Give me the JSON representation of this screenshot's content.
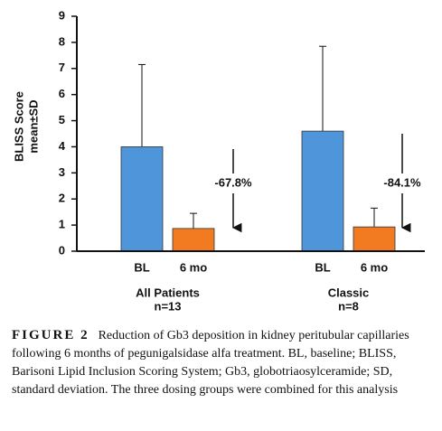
{
  "chart_data": {
    "type": "bar",
    "ylabel": [
      "BLISS Score",
      "mean±SD"
    ],
    "groups": [
      "All Patients",
      "Classic"
    ],
    "group_n": [
      "n=13",
      "n=8"
    ],
    "series": [
      {
        "name": "BL",
        "color": "#4f95d9",
        "values": [
          4.0,
          4.6
        ],
        "errors": [
          3.15,
          3.25
        ]
      },
      {
        "name": "6 mo",
        "color": "#f27b21",
        "values": [
          0.87,
          0.93
        ],
        "errors": [
          0.58,
          0.72
        ]
      }
    ],
    "annotations": [
      "-67.8%",
      "-84.1%"
    ],
    "ylim": [
      0,
      9
    ],
    "yticks": [
      0,
      1,
      2,
      3,
      4,
      5,
      6,
      7,
      8,
      9
    ]
  },
  "caption": {
    "label": "FIGURE 2",
    "text": "Reduction of Gb3 deposition in kidney peritubular capillaries following 6 months of pegunigalsidase alfa treatment. BL, baseline; BLISS, Barisoni Lipid Inclusion Scoring System; Gb3, globotriaosylceramide; SD, standard deviation. The three dosing groups were combined for this analysis"
  }
}
